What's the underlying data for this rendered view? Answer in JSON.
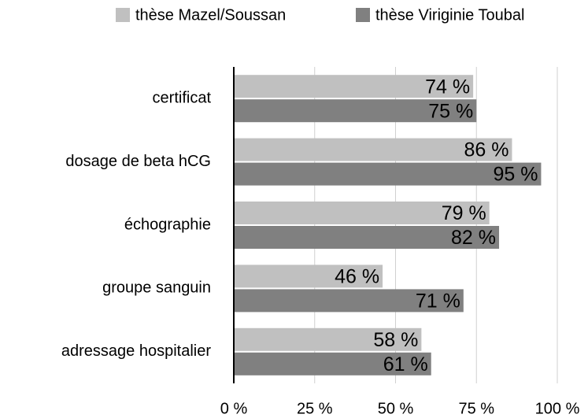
{
  "chart_data": {
    "type": "hbar",
    "categories": [
      "certificat",
      "dosage de beta hCG",
      "échographie",
      "groupe sanguin",
      "adressage hospitalier"
    ],
    "series": [
      {
        "name": "thèse Mazel/Soussan",
        "color": "#c0c0c0",
        "values": [
          74,
          86,
          79,
          46,
          58
        ],
        "value_labels": [
          "74 %",
          "86 %",
          "79 %",
          "46 %",
          "58 %"
        ]
      },
      {
        "name": "thèse Viriginie Toubal",
        "color": "#808080",
        "values": [
          75,
          95,
          82,
          71,
          61
        ],
        "value_labels": [
          "75 %",
          "95 %",
          "82 %",
          "71 %",
          "61 %"
        ]
      }
    ],
    "xlim": [
      0,
      100
    ],
    "xticks": [
      {
        "value": 0,
        "label": "0 %"
      },
      {
        "value": 25,
        "label": "25 %"
      },
      {
        "value": 50,
        "label": "50 %"
      },
      {
        "value": 75,
        "label": "75 %"
      },
      {
        "value": 100,
        "label": "100 %"
      }
    ],
    "grid": true,
    "legend": "top"
  }
}
